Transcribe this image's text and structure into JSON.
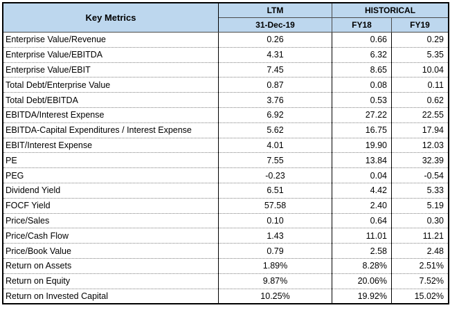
{
  "header": {
    "key_metrics": "Key Metrics",
    "ltm": "LTM",
    "historical": "HISTORICAL",
    "ltm_date": "31-Dec-19",
    "fy18": "FY18",
    "fy19": "FY19"
  },
  "rows": [
    {
      "label": "Enterprise Value/Revenue",
      "ltm": "0.26",
      "fy18": "0.66",
      "fy19": "0.29"
    },
    {
      "label": "Enterprise Value/EBITDA",
      "ltm": "4.31",
      "fy18": "6.32",
      "fy19": "5.35"
    },
    {
      "label": "Enterprise Value/EBIT",
      "ltm": "7.45",
      "fy18": "8.65",
      "fy19": "10.04"
    },
    {
      "label": "Total Debt/Enterprise Value",
      "ltm": "0.87",
      "fy18": "0.08",
      "fy19": "0.11"
    },
    {
      "label": "Total Debt/EBITDA",
      "ltm": "3.76",
      "fy18": "0.53",
      "fy19": "0.62"
    },
    {
      "label": "EBITDA/Interest Expense",
      "ltm": "6.92",
      "fy18": "27.22",
      "fy19": "22.55"
    },
    {
      "label": "EBITDA-Capital Expenditures / Interest Expense",
      "ltm": "5.62",
      "fy18": "16.75",
      "fy19": "17.94"
    },
    {
      "label": "EBIT/Interest Expense",
      "ltm": "4.01",
      "fy18": "19.90",
      "fy19": "12.03"
    },
    {
      "label": "PE",
      "ltm": "7.55",
      "fy18": "13.84",
      "fy19": "32.39"
    },
    {
      "label": "PEG",
      "ltm": "-0.23",
      "fy18": "0.04",
      "fy19": "-0.54"
    },
    {
      "label": "Dividend Yield",
      "ltm": "6.51",
      "fy18": "4.42",
      "fy19": "5.33"
    },
    {
      "label": "FOCF Yield",
      "ltm": "57.58",
      "fy18": "2.40",
      "fy19": "5.19"
    },
    {
      "label": "Price/Sales",
      "ltm": "0.10",
      "fy18": "0.64",
      "fy19": "0.30"
    },
    {
      "label": "Price/Cash Flow",
      "ltm": "1.43",
      "fy18": "11.01",
      "fy19": "11.21"
    },
    {
      "label": "Price/Book Value",
      "ltm": "0.79",
      "fy18": "2.58",
      "fy19": "2.48"
    },
    {
      "label": "Return on Assets",
      "ltm": "1.89%",
      "fy18": "8.28%",
      "fy19": "2.51%"
    },
    {
      "label": "Return on Equity",
      "ltm": "9.87%",
      "fy18": "20.06%",
      "fy19": "7.52%"
    },
    {
      "label": "Return on Invested Capital",
      "ltm": "10.25%",
      "fy18": "19.92%",
      "fy19": "15.02%"
    }
  ],
  "colors": {
    "header_bg": "#bdd7ee",
    "border": "#000000"
  }
}
